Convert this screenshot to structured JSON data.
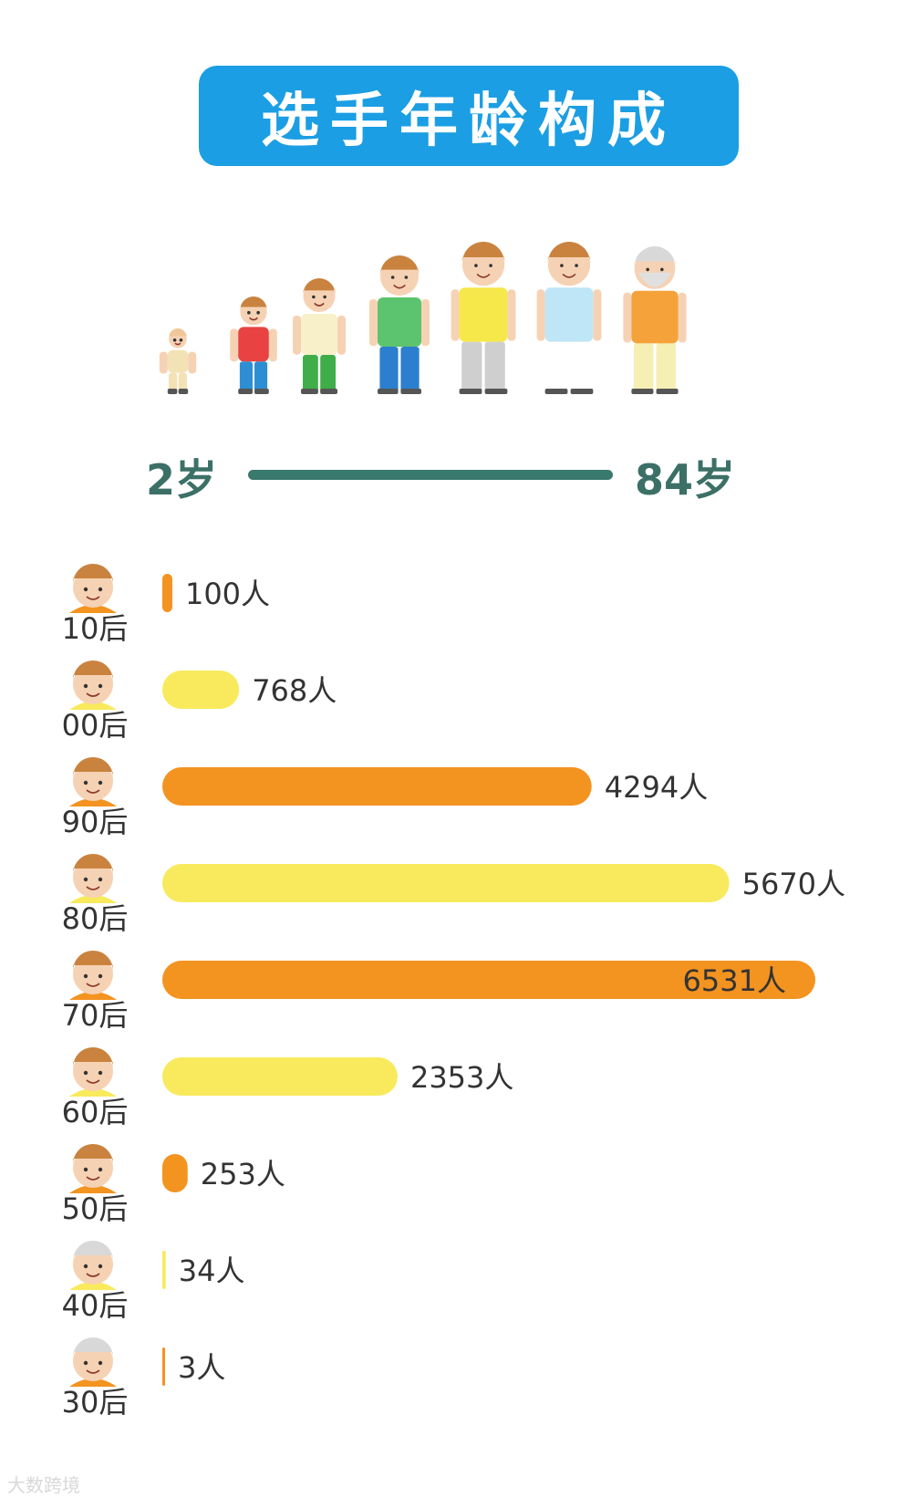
{
  "title": "选手年龄构成",
  "age_range": {
    "min_label": "2岁",
    "max_label": "84岁"
  },
  "figures": [
    {
      "name": "baby",
      "shirt": "#f3e2b6",
      "pants": "#f3e2b6",
      "hair": "#f0c79a",
      "skin": "#f6d2b4"
    },
    {
      "name": "child",
      "shirt": "#e84242",
      "pants": "#2e8ed4",
      "hair": "#c9833f",
      "skin": "#f6d2b4"
    },
    {
      "name": "student",
      "shirt": "#f7f0c8",
      "pants": "#3fae49",
      "hair": "#c9833f",
      "skin": "#f6d2b4"
    },
    {
      "name": "teen",
      "shirt": "#5cc46e",
      "pants": "#2c7fcf",
      "hair": "#c9833f",
      "skin": "#f6d2b4"
    },
    {
      "name": "young-adult",
      "shirt": "#f6e84a",
      "pants": "#cfcfcf",
      "hair": "#c9833f",
      "skin": "#f6d2b4"
    },
    {
      "name": "adult",
      "shirt": "#bfe6f7",
      "pants": "#ffffff",
      "hair": "#c9833f",
      "skin": "#f6d2b4"
    },
    {
      "name": "elder",
      "shirt": "#f6a23b",
      "pants": "#f6efb3",
      "hair": "#d8d8d8",
      "skin": "#f6d2b4"
    }
  ],
  "colors": {
    "orange": "#f39320",
    "yellow": "#f8ea5c",
    "label": "#333333"
  },
  "chart_data": {
    "type": "bar",
    "orientation": "horizontal",
    "categories": [
      "10后",
      "00后",
      "90后",
      "80后",
      "70后",
      "60后",
      "50后",
      "40后",
      "30后"
    ],
    "values": [
      100,
      768,
      4294,
      5670,
      6531,
      2353,
      253,
      34,
      3
    ],
    "value_labels": [
      "100人",
      "768人",
      "4294人",
      "5670人",
      "6531人",
      "2353人",
      "253人",
      "34人",
      "3人"
    ],
    "bar_colors": [
      "orange",
      "yellow",
      "orange",
      "yellow",
      "orange",
      "yellow",
      "orange",
      "yellow",
      "orange"
    ],
    "xlim": [
      0,
      6531
    ]
  },
  "watermark": "大数跨境"
}
